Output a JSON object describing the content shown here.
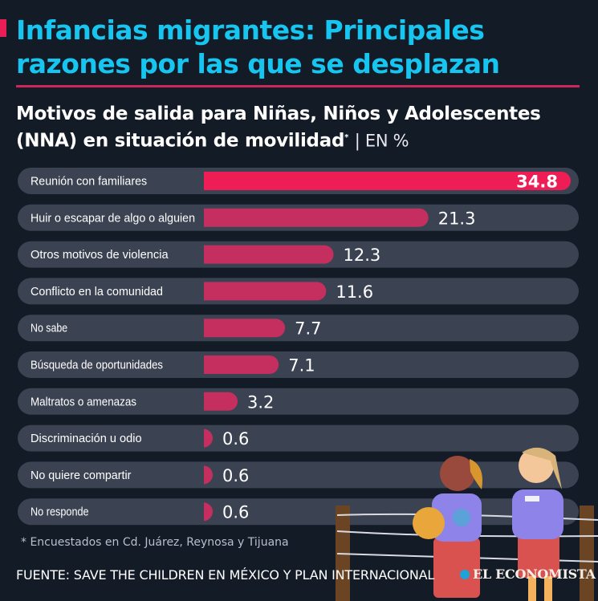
{
  "header": {
    "title_line1": "Infancias migrantes: Principales",
    "title_line2": "razones por las que se desplazan",
    "subtitle_line1": "Motivos de salida para Niñas, Niños y Adolescentes",
    "subtitle_line2": "(NNA) en situación de movilidad",
    "subtitle_marker": "*",
    "subtitle_unit": "| EN %"
  },
  "colors": {
    "background": "#131b27",
    "title": "#16c5f0",
    "accent": "#e91e56",
    "top_bar": "#ee1d55",
    "bar": "#c42f5f",
    "track": "#3b4252"
  },
  "chart_data": {
    "type": "bar",
    "orientation": "horizontal",
    "title": "Motivos de salida para Niñas, Niños y Adolescentes (NNA) en situación de movilidad",
    "unit": "%",
    "xlim": [
      0,
      34.8
    ],
    "categories": [
      "Reunión con familiares",
      "Huir o escapar de algo o alguien",
      "Otros motivos de violencia",
      "Conflicto en la comunidad",
      "No sabe",
      "Búsqueda de oportunidades",
      "Maltratos o amenazas",
      "Discriminación u odio",
      "No quiere compartir",
      "No responde"
    ],
    "values": [
      34.8,
      21.3,
      12.3,
      11.6,
      7.7,
      7.1,
      3.2,
      0.6,
      0.6,
      0.6
    ],
    "labels": [
      "34.8",
      "21.3",
      "12.3",
      "11.6",
      "7.7",
      "7.1",
      "3.2",
      "0.6",
      "0.6",
      "0.6"
    ],
    "highlight_index": 0
  },
  "footer": {
    "footnote": "* Encuestados en Cd. Juárez, Reynosa y Tijuana",
    "source": "FUENTE: SAVE THE CHILDREN EN MÉXICO Y PLAN INTERNACIONAL",
    "brand": "EL ECONOMISTA"
  }
}
